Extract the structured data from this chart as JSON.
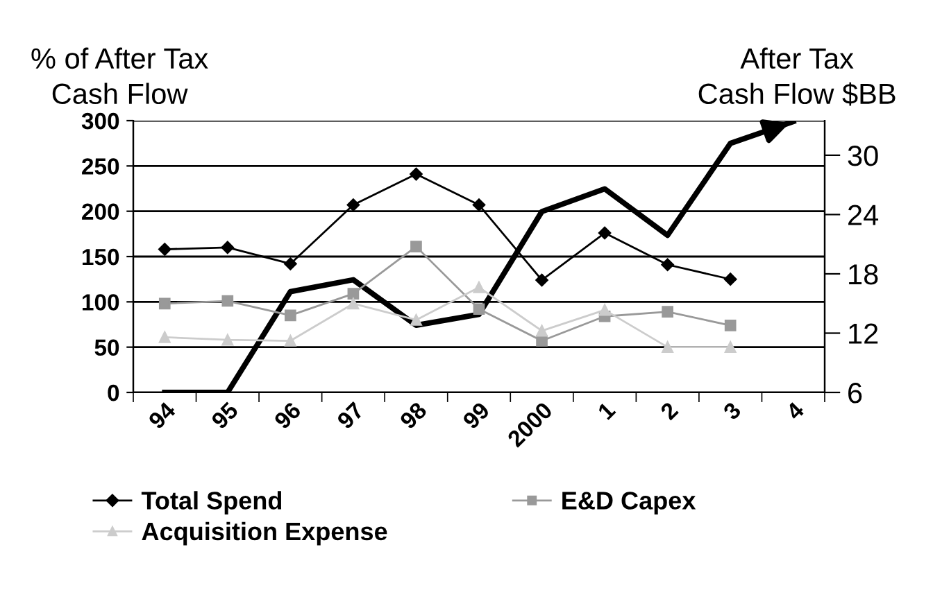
{
  "chart_data": {
    "type": "line",
    "ylabel": "% of After Tax\nCash Flow",
    "y2label": "After Tax\nCash Flow $BB",
    "categories": [
      "94",
      "95",
      "96",
      "97",
      "98",
      "99",
      "2000",
      "1",
      "2",
      "3",
      "4"
    ],
    "series": [
      {
        "name": "Total Spend",
        "color": "#000000",
        "marker": "diamond",
        "values": [
          158,
          160,
          142,
          207,
          241,
          207,
          124,
          176,
          141,
          125,
          null
        ]
      },
      {
        "name": "E&D Capex",
        "color": "#999999",
        "marker": "square",
        "values": [
          98,
          101,
          85,
          109,
          161,
          92,
          57,
          84,
          89,
          74,
          null
        ]
      },
      {
        "name": "Acquisition Expense",
        "color": "#cccccc",
        "marker": "triangle",
        "values": [
          61,
          58,
          57,
          98,
          80,
          116,
          68,
          91,
          50,
          50,
          null
        ]
      },
      {
        "color": "#000000",
        "axis": "y2",
        "marker": "none",
        "values": [
          6,
          6,
          16.2,
          17.4,
          12.8,
          13.9,
          24.3,
          26.6,
          21.9,
          31.2,
          33.4
        ]
      }
    ],
    "ylim": [
      0,
      300
    ],
    "yticks": [
      0,
      50,
      100,
      150,
      200,
      250,
      300
    ],
    "y2lim": [
      6,
      33.5
    ],
    "y2ticks": [
      6,
      12,
      18,
      24,
      30
    ],
    "grid": "y",
    "legend": "bottom"
  }
}
